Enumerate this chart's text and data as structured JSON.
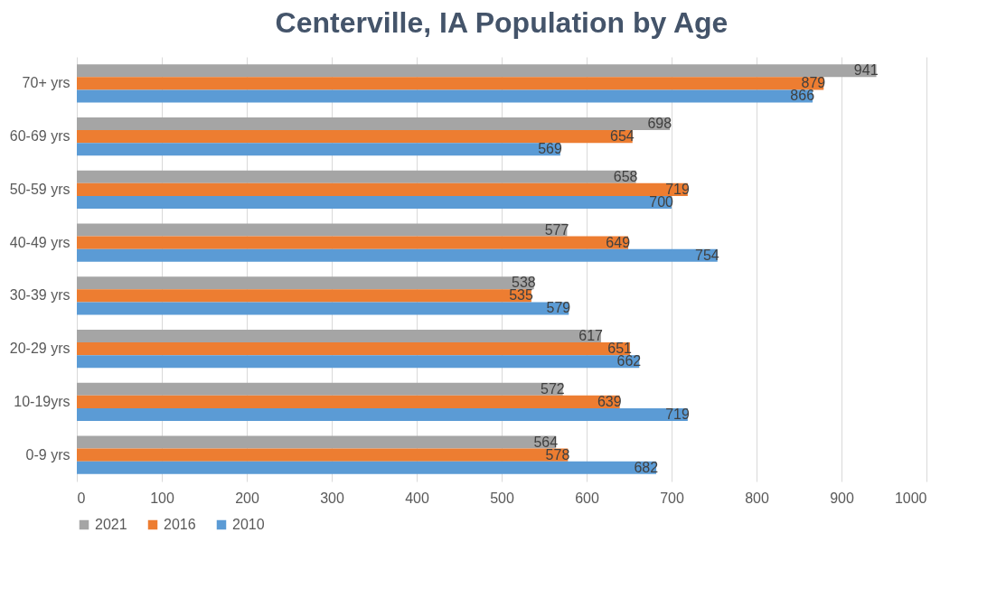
{
  "chart_data": {
    "type": "bar",
    "orientation": "horizontal",
    "title": "Centerville, IA Population by Age",
    "categories": [
      "70+ yrs",
      "60-69 yrs",
      "50-59 yrs",
      "40-49 yrs",
      "30-39 yrs",
      "20-29 yrs",
      "10-19yrs",
      "0-9 yrs"
    ],
    "series": [
      {
        "name": "2021",
        "color": "#a5a5a5",
        "values": [
          941,
          698,
          658,
          577,
          538,
          617,
          572,
          564
        ]
      },
      {
        "name": "2016",
        "color": "#ed7d31",
        "values": [
          879,
          654,
          719,
          649,
          535,
          651,
          639,
          578
        ]
      },
      {
        "name": "2010",
        "color": "#5b9bd5",
        "values": [
          866,
          569,
          700,
          754,
          579,
          662,
          719,
          682
        ]
      }
    ],
    "xlim": [
      0,
      1000
    ],
    "xticks": [
      0,
      100,
      200,
      300,
      400,
      500,
      600,
      700,
      800,
      900,
      1000
    ],
    "grid": "x",
    "legend": "bottom",
    "data_labels": true
  }
}
